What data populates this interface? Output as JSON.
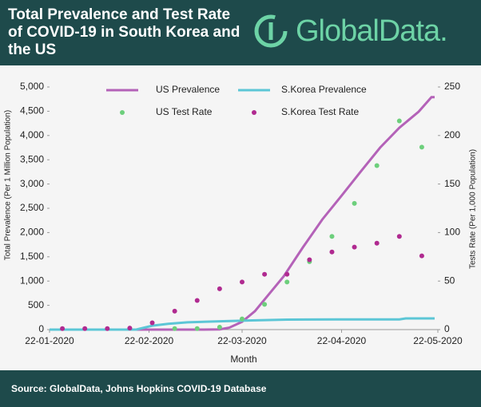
{
  "chart_data": {
    "type": "line",
    "title": "Total Prevalence and Test Rate of COVID-19 in South Korea and the US",
    "logo": "GlobalData.",
    "source": "Source: GlobalData, Johns Hopkins COVID-19 Database",
    "x_label": "Month",
    "y_label": "Total Prevalence (Per 1 Million Population)",
    "y2_label": "Tests Rate  (Per 1,000 Population)",
    "xlim": [
      "22-01-2020",
      "22-05-2020"
    ],
    "xticks": [
      "22-01-2020",
      "22-02-2020",
      "22-03-2020",
      "22-04-2020",
      "22-05-2020"
    ],
    "ylim": [
      0,
      5000
    ],
    "yticks": [
      0,
      500,
      {
        "value": 1000,
        "label": "1,000"
      },
      {
        "value": 1500,
        "label": "1,500"
      },
      {
        "value": 2000,
        "label": "2,000"
      },
      {
        "value": 2500,
        "label": "2,500"
      },
      {
        "value": 3000,
        "label": "3,000"
      },
      {
        "value": 3500,
        "label": "3,500"
      },
      {
        "value": 4000,
        "label": "4,000"
      },
      {
        "value": 4500,
        "label": "4,500"
      },
      {
        "value": 5000,
        "label": "5,000"
      }
    ],
    "y2lim": [
      0,
      250
    ],
    "y2ticks": [
      0,
      50,
      100,
      150,
      200,
      250
    ],
    "series": [
      {
        "name": "US Prevalence",
        "type": "line",
        "color": "#b462b8",
        "x": [
          "22-01-2020",
          "10-03-2020",
          "15-03-2020",
          "18-03-2020",
          "22-03-2020",
          "26-03-2020",
          "30-03-2020",
          "04-04-2020",
          "10-04-2020",
          "16-04-2020",
          "22-04-2020",
          "28-04-2020",
          "04-05-2020",
          "10-05-2020",
          "16-05-2020",
          "20-05-2020",
          "21-05-2020"
        ],
        "values": [
          0,
          0,
          5,
          40,
          160,
          380,
          700,
          1100,
          1700,
          2270,
          2760,
          3260,
          3750,
          4160,
          4490,
          4790,
          4790
        ]
      },
      {
        "name": "S.Korea Prevalence",
        "type": "line",
        "color": "#5cc6d6",
        "x": [
          "22-01-2020",
          "18-02-2020",
          "23-02-2020",
          "28-02-2020",
          "05-03-2020",
          "15-03-2020",
          "25-03-2020",
          "05-04-2020",
          "20-04-2020",
          "10-05-2020",
          "12-05-2020",
          "21-05-2020"
        ],
        "values": [
          0,
          0,
          80,
          120,
          150,
          170,
          190,
          205,
          210,
          210,
          230,
          230
        ]
      },
      {
        "name": "US Test Rate",
        "type": "scatter",
        "color": "#6dcf7c",
        "axis": "y2",
        "x": [
          "01-03-2020",
          "08-03-2020",
          "15-03-2020",
          "22-03-2020",
          "29-03-2020",
          "05-04-2020",
          "12-04-2020",
          "19-04-2020",
          "26-04-2020",
          "03-05-2020",
          "10-05-2020",
          "17-05-2020"
        ],
        "values": [
          1,
          1,
          2.5,
          11,
          26,
          49,
          70,
          96,
          130,
          169,
          215,
          188
        ]
      },
      {
        "name": "S.Korea Test Rate",
        "type": "scatter",
        "color": "#b02a90",
        "axis": "y2",
        "x": [
          "26-01-2020",
          "02-02-2020",
          "09-02-2020",
          "16-02-2020",
          "23-02-2020",
          "01-03-2020",
          "08-03-2020",
          "15-03-2020",
          "22-03-2020",
          "29-03-2020",
          "05-04-2020",
          "12-04-2020",
          "19-04-2020",
          "26-04-2020",
          "03-05-2020",
          "10-05-2020",
          "17-05-2020"
        ],
        "values": [
          1,
          1,
          1,
          1.5,
          7,
          19,
          30,
          42,
          49,
          57,
          57,
          72,
          80,
          85,
          89,
          96,
          76
        ]
      }
    ]
  }
}
